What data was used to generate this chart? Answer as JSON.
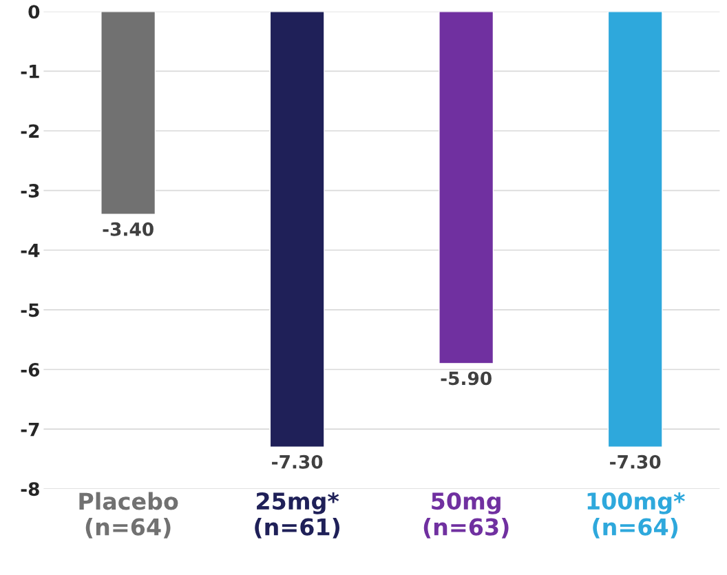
{
  "chart_data": {
    "type": "bar",
    "categories": [
      "Placebo\n(n=64)",
      "25mg*\n(n=61)",
      "50mg\n(n=63)",
      "100mg*\n(n=64)"
    ],
    "values": [
      -3.4,
      -7.3,
      -5.9,
      -7.3
    ],
    "colors": [
      "#717171",
      "#1f2058",
      "#7030a0",
      "#2ea8dc"
    ],
    "value_labels": [
      "-3.40",
      "-7.30",
      "-5.90",
      "-7.30"
    ],
    "ylim": [
      -8,
      0
    ],
    "yticks": [
      -8,
      -7,
      -6,
      -5,
      -4,
      -3,
      -2,
      -1,
      0
    ],
    "grid": "y"
  }
}
